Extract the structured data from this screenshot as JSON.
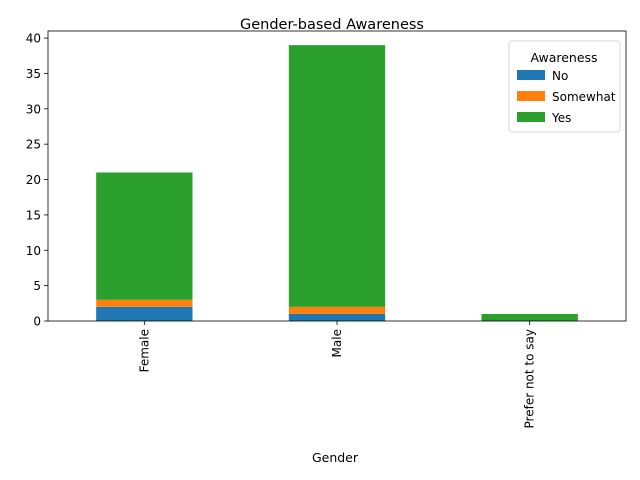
{
  "chart_data": {
    "type": "bar",
    "stacked": true,
    "title": "Gender-based Awareness",
    "xlabel": "Gender",
    "ylabel": "",
    "categories": [
      "Female",
      "Male",
      "Prefer not to say"
    ],
    "series": [
      {
        "name": "No",
        "color": "#1f77b4",
        "values": [
          2,
          1,
          0
        ]
      },
      {
        "name": "Somewhat",
        "color": "#ff7f0e",
        "values": [
          1,
          1,
          0
        ]
      },
      {
        "name": "Yes",
        "color": "#2ca02c",
        "values": [
          18,
          37,
          1
        ]
      }
    ],
    "ylim": [
      0,
      41
    ],
    "yticks": [
      0,
      5,
      10,
      15,
      20,
      25,
      30,
      35,
      40
    ],
    "legend": {
      "title": "Awareness",
      "placement": "top-right"
    },
    "grid": false
  }
}
